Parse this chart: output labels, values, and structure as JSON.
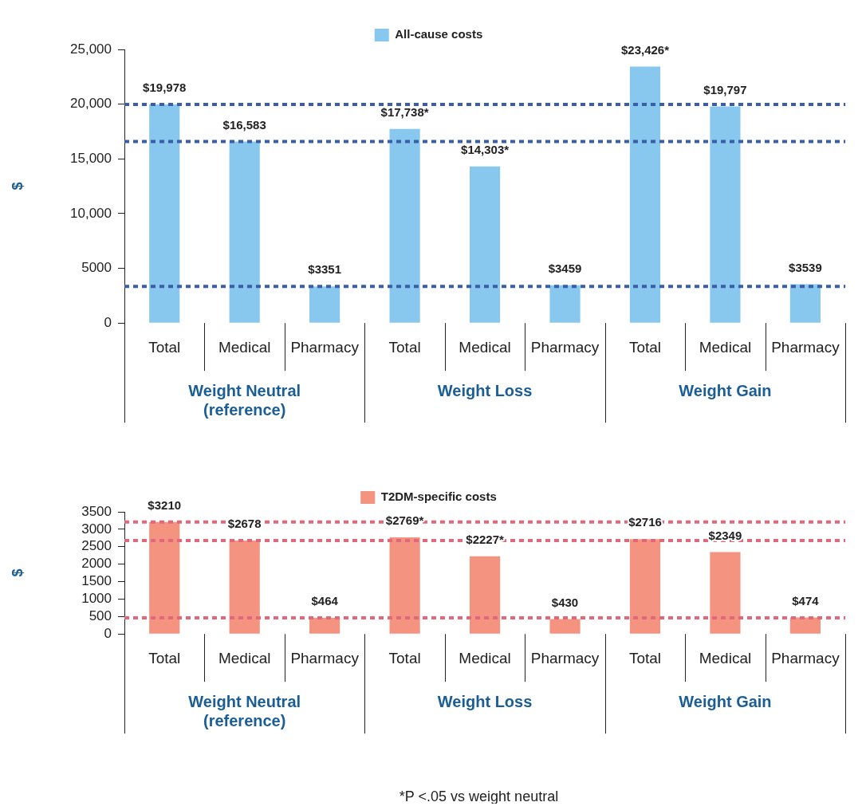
{
  "chart_data": [
    {
      "type": "bar",
      "categories": [
        "Total",
        "Medical",
        "Pharmacy",
        "Total",
        "Medical",
        "Pharmacy",
        "Total",
        "Medical",
        "Pharmacy"
      ],
      "series": [
        {
          "name": "All-cause costs",
          "color": "#89c8ee",
          "values": [
            19978,
            16583,
            3351,
            17738,
            14303,
            3459,
            23426,
            19797,
            3539
          ],
          "value_labels": [
            "$19,978",
            "$16,583",
            "$3351",
            "$17,738*",
            "$14,303*",
            "$3459",
            "$23,426*",
            "$19,797",
            "$3539"
          ]
        }
      ],
      "ylabel": "$",
      "ylim": [
        0,
        25000
      ],
      "yticks": [
        0,
        {
          "value": 5000,
          "label": "5000"
        },
        {
          "value": 10000,
          "label": "10,000"
        },
        {
          "value": 15000,
          "label": "15,000"
        },
        {
          "value": 20000,
          "label": "20,000"
        },
        {
          "value": 25000,
          "label": "25,000"
        }
      ],
      "ref_lines": [
        {
          "axis": "y",
          "value": 19978,
          "color": "#3b5ea8",
          "line_style": "dashed"
        },
        {
          "axis": "y",
          "value": 16583,
          "color": "#3b5ea8",
          "line_style": "dashed"
        },
        {
          "axis": "y",
          "value": 3351,
          "color": "#3b5ea8",
          "line_style": "dashed"
        }
      ],
      "annotations": [
        "Weight Neutral\n(reference)",
        "Weight Loss",
        "Weight Gain"
      ],
      "legend": "top",
      "grid": false
    },
    {
      "type": "bar",
      "categories": [
        "Total",
        "Medical",
        "Pharmacy",
        "Total",
        "Medical",
        "Pharmacy",
        "Total",
        "Medical",
        "Pharmacy"
      ],
      "series": [
        {
          "name": "T2DM-specific costs",
          "color": "#f4937f",
          "values": [
            3210,
            2678,
            464,
            2769,
            2227,
            430,
            2716,
            2349,
            474
          ],
          "value_labels": [
            "$3210",
            "$2678",
            "$464",
            "$2769*",
            "$2227*",
            "$430",
            "$2716",
            "$2349",
            "$474"
          ]
        }
      ],
      "ylabel": "$",
      "ylim": [
        0,
        3500
      ],
      "yticks": [
        0,
        500,
        1000,
        1500,
        2000,
        2500,
        3000,
        3500
      ],
      "ref_lines": [
        {
          "axis": "y",
          "value": 3210,
          "color": "#e0687a",
          "line_style": "dashed"
        },
        {
          "axis": "y",
          "value": 2678,
          "color": "#e0687a",
          "line_style": "dashed"
        },
        {
          "axis": "y",
          "value": 464,
          "color": "#e0687a",
          "line_style": "dashed"
        }
      ],
      "annotations": [
        "Weight Neutral\n(reference)",
        "Weight Loss",
        "Weight Gain",
        "*P <.05 vs weight neutral"
      ],
      "legend": "top",
      "grid": false
    }
  ]
}
